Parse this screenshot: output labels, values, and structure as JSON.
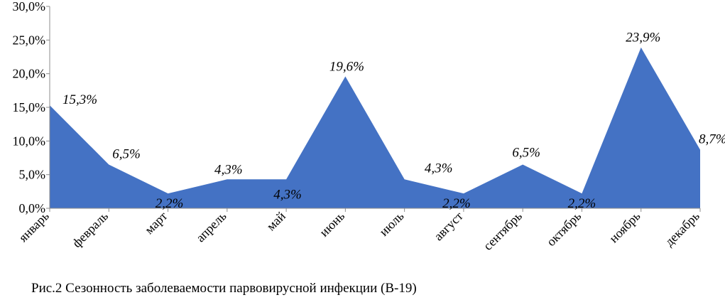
{
  "caption": "Рис.2 Сезонность заболеваемости парвовирусной инфекции (В-19)",
  "chart_data": {
    "type": "area",
    "categories": [
      "январь",
      "февраль",
      "март",
      "апрель",
      "май",
      "июнь",
      "июль",
      "август",
      "сентябрь",
      "октябрь",
      "ноябрь",
      "декабрь"
    ],
    "values": [
      15.3,
      6.5,
      2.2,
      4.3,
      4.3,
      19.6,
      4.3,
      2.2,
      6.5,
      2.2,
      23.9,
      8.7
    ],
    "data_labels": [
      "15,3%",
      "6,5%",
      "2,2%",
      "4,3%",
      "4,3%",
      "19,6%",
      "4,3%",
      "2,2%",
      "6,5%",
      "2,2%",
      "23,9%",
      "8,7%"
    ],
    "ylim": [
      0,
      30
    ],
    "y_ticks": [
      "0,0%",
      "5,0%",
      "10,0%",
      "15,0%",
      "20,0%",
      "25,0%",
      "30,0%"
    ],
    "grid": false,
    "fill_color": "#4472C4"
  }
}
